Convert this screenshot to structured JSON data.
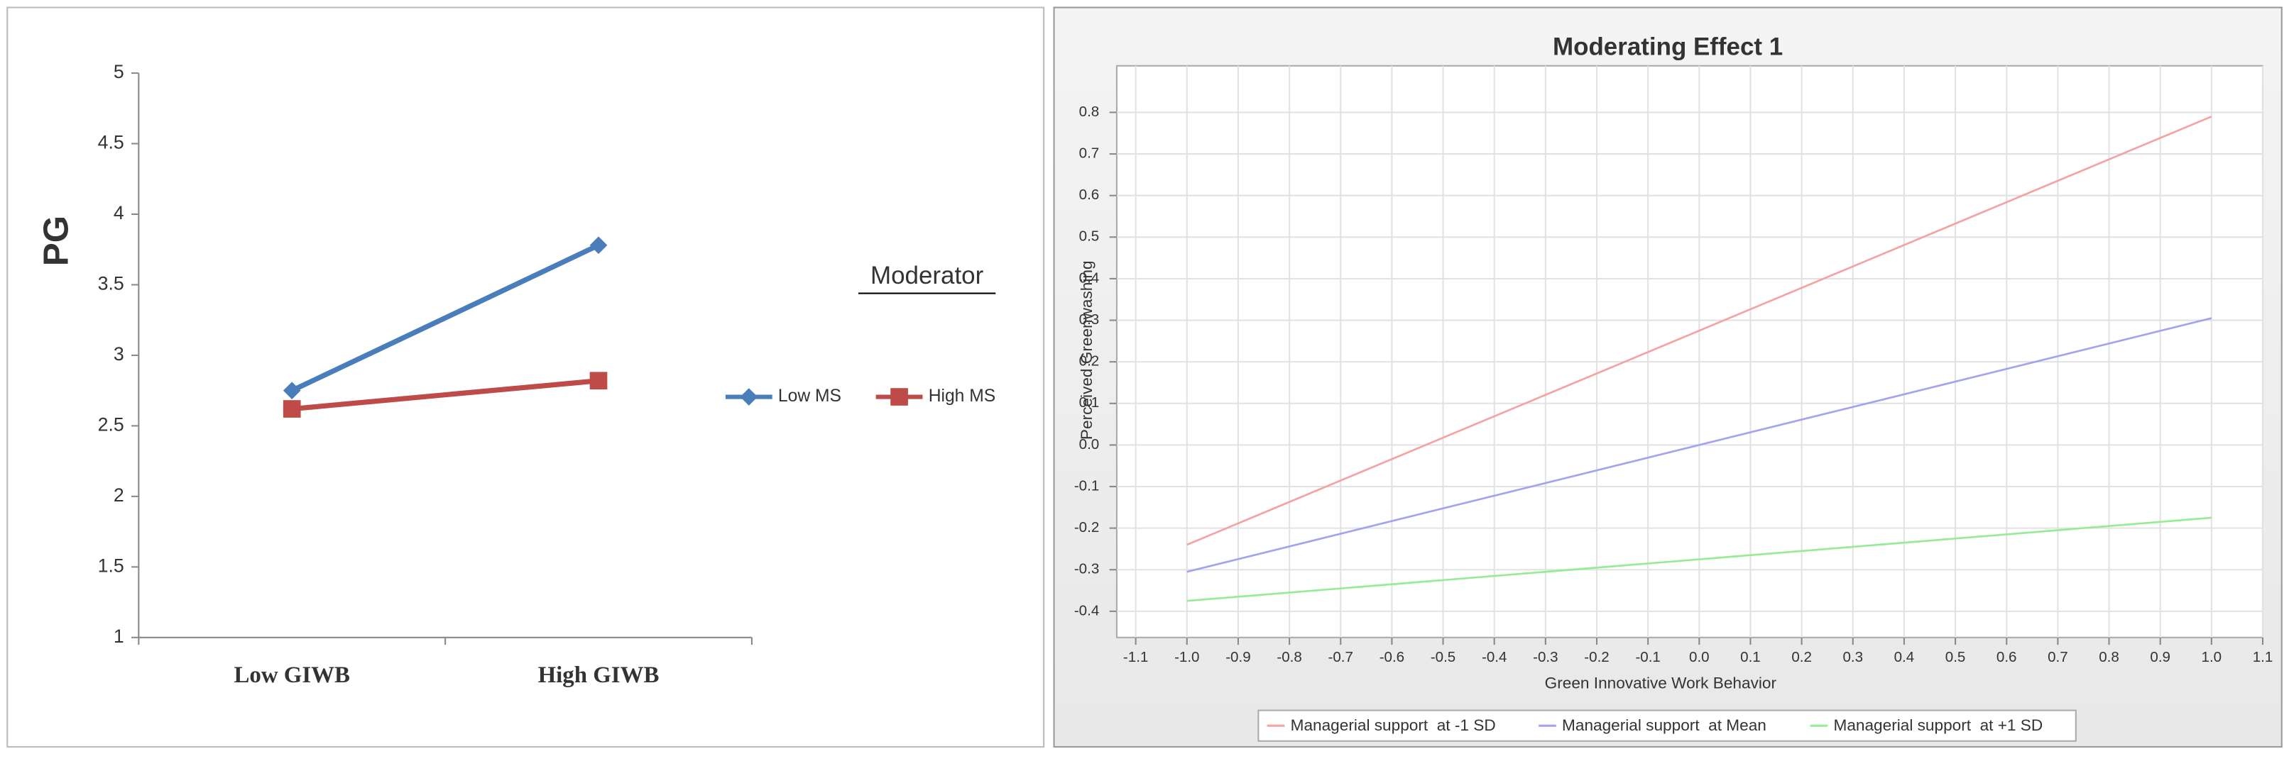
{
  "chart_data": [
    {
      "type": "line",
      "y_label": "PG",
      "annotation": "Moderator",
      "categories": [
        "Low GIWB",
        "High GIWB"
      ],
      "series": [
        {
          "name": "Low MS",
          "color": "#4a7ebb",
          "marker": "diamond",
          "values": [
            2.75,
            3.78
          ]
        },
        {
          "name": "High MS",
          "color": "#be4b48",
          "marker": "square",
          "values": [
            2.62,
            2.82
          ]
        }
      ],
      "ylim": [
        1,
        5
      ],
      "yticks": [
        1,
        1.5,
        2,
        2.5,
        3,
        3.5,
        4,
        4.5,
        5
      ],
      "grid": false,
      "legend": "right"
    },
    {
      "type": "line",
      "title": "Moderating Effect 1",
      "x_label": "Green Innovative Work Behavior",
      "y_label": "Perceived Greenwashing",
      "x": [
        -1,
        1
      ],
      "series": [
        {
          "name": "Managerial support  at -1 SD",
          "color": "#f4a3a3",
          "values": [
            -0.24,
            0.79
          ]
        },
        {
          "name": "Managerial support  at Mean",
          "color": "#a3a3ee",
          "values": [
            -0.305,
            0.305
          ]
        },
        {
          "name": "Managerial support  at +1 SD",
          "color": "#96ec96",
          "values": [
            -0.375,
            -0.175
          ]
        }
      ],
      "xlim": [
        -1.137,
        1.1
      ],
      "xticks": [
        -1.1,
        {
          "value": -1,
          "label": "-1.0"
        },
        -0.9,
        -0.8,
        -0.7,
        -0.6,
        -0.5,
        -0.4,
        -0.3,
        -0.2,
        -0.1,
        {
          "value": 0,
          "label": "0.0"
        },
        0.1,
        0.2,
        0.3,
        0.4,
        0.5,
        0.6,
        0.7,
        0.8,
        0.9,
        {
          "value": 1,
          "label": "1.0"
        },
        1.1
      ],
      "ylim": [
        -0.463,
        0.912
      ],
      "yticks": [
        -0.4,
        -0.3,
        -0.2,
        -0.1,
        {
          "value": 0,
          "label": "0.0"
        },
        0.1,
        0.2,
        0.3,
        0.4,
        0.5,
        0.6,
        0.7,
        0.8
      ],
      "grid": true,
      "legend": "bottom"
    }
  ]
}
